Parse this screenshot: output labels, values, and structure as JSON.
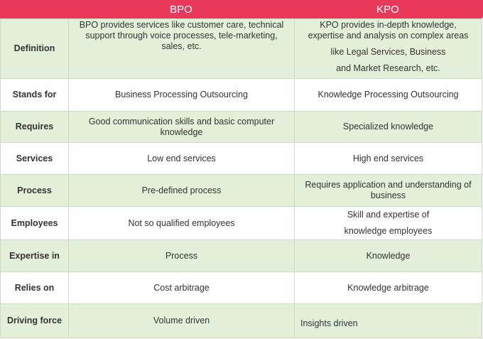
{
  "columns": {
    "bpo": "BPO",
    "kpo": "KPO"
  },
  "rows": [
    {
      "label": "Definition",
      "bpo": [
        "BPO provides services like customer care, technical",
        "support through voice processes, tele-marketing,",
        "sales, etc."
      ],
      "kpo": [
        "KPO provides in-depth knowledge,",
        "expertise and analysis on complex areas",
        "like Legal Services, Business",
        "and Market Research, etc."
      ]
    },
    {
      "label": "Stands for",
      "bpo": [
        "Business Processing Outsourcing"
      ],
      "kpo": [
        "Knowledge Processing Outsourcing"
      ]
    },
    {
      "label": "Requires",
      "bpo": [
        "Good communication skills and basic computer",
        "knowledge"
      ],
      "kpo": [
        "Specialized knowledge"
      ]
    },
    {
      "label": "Services",
      "bpo": [
        "Low end services"
      ],
      "kpo": [
        "High end services"
      ]
    },
    {
      "label": "Process",
      "bpo": [
        "Pre-defined process"
      ],
      "kpo": [
        "Requires application and understanding of",
        "business"
      ]
    },
    {
      "label": "Employees",
      "bpo": [
        "Not so qualified employees"
      ],
      "kpo": [
        "Skill and expertise of",
        "knowledge employees"
      ]
    },
    {
      "label": "Expertise in",
      "bpo": [
        "Process"
      ],
      "kpo": [
        "Knowledge"
      ]
    },
    {
      "label": "Relies on",
      "bpo": [
        "Cost arbitrage"
      ],
      "kpo": [
        "Knowledge arbitrage"
      ]
    },
    {
      "label": "Driving force",
      "bpo": [
        "Volume driven"
      ],
      "kpo": [
        "Insights driven"
      ]
    }
  ],
  "colors": {
    "header": "#e8395a",
    "shaded_row": "#e2efd9",
    "border": "#cfd9c5"
  }
}
